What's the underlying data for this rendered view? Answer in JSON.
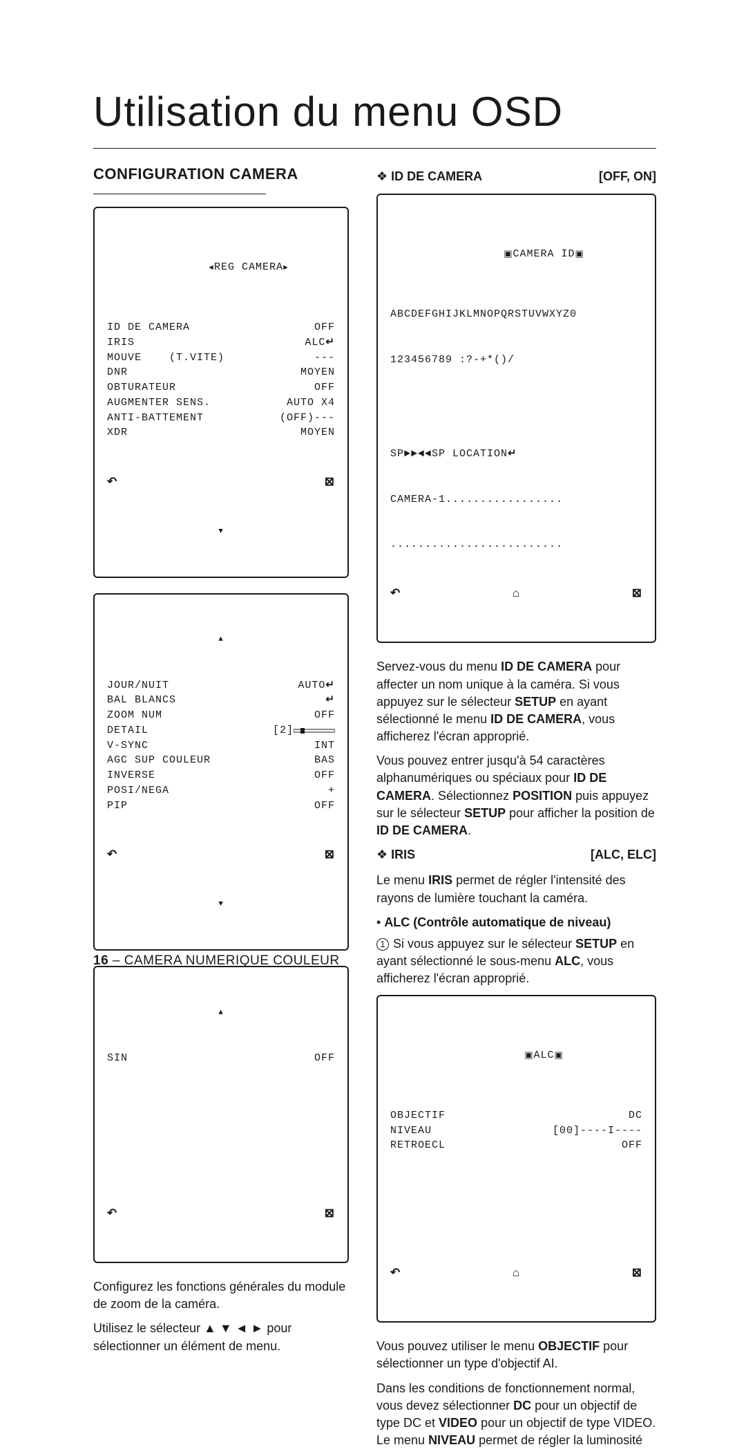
{
  "title": "Utilisation du menu OSD",
  "section_heading": "CONFIGURATION CAMERA",
  "footer": {
    "page": "16",
    "label": "CAMERA NUMERIQUE COULEUR"
  },
  "osd_reg_camera": {
    "title": "REG CAMERA",
    "rows": [
      {
        "label": "ID DE CAMERA",
        "value": "OFF"
      },
      {
        "label": "IRIS",
        "value": "ALC",
        "enter": true
      },
      {
        "label": "MOUVE    (T.VITE)",
        "value": "---"
      },
      {
        "label": "DNR",
        "value": "MOYEN"
      },
      {
        "label": "OBTURATEUR",
        "value": "OFF"
      },
      {
        "label": "AUGMENTER SENS.",
        "value": "AUTO X4"
      },
      {
        "label": "ANTI-BATTEMENT",
        "value": "(OFF)---"
      },
      {
        "label": "XDR",
        "value": "MOYEN"
      }
    ]
  },
  "osd_settings2": {
    "rows": [
      {
        "label": "JOUR/NUIT",
        "value": "AUTO",
        "enter": true
      },
      {
        "label": "BAL BLANCS",
        "value": "",
        "enter": true
      },
      {
        "label": "ZOOM NUM",
        "value": "OFF"
      },
      {
        "label": "DETAIL",
        "value": "[2]",
        "slider": true
      },
      {
        "label": "V-SYNC",
        "value": "INT"
      },
      {
        "label": "AGC SUP COULEUR",
        "value": "BAS"
      },
      {
        "label": "INVERSE",
        "value": "OFF"
      },
      {
        "label": "POSI/NEGA",
        "value": "+"
      },
      {
        "label": "PIP",
        "value": "OFF"
      }
    ]
  },
  "osd_sin": {
    "rows": [
      {
        "label": "SIN",
        "value": "OFF"
      }
    ]
  },
  "left_paras": [
    "Configurez les fonctions générales du module de zoom de la caméra.",
    "Utilisez le sélecteur ▲ ▼ ◄ ► pour sélectionner un élément de menu."
  ],
  "id_camera": {
    "heading": "ID DE CAMERA",
    "options": "[OFF, ON]",
    "osd": {
      "title": "CAMERA ID",
      "alpha": "ABCDEFGHIJKLMNOPQRSTUVWXYZ0",
      "num": "123456789 :?-+*()/",
      "sp_line": "SP►►◄◄SP LOCATION",
      "name_line": "CAMERA-1.................",
      "dots_line": "........................."
    },
    "paras": [
      "Servez-vous du menu **ID DE CAMERA** pour affecter un nom unique à la caméra. Si vous appuyez sur le sélecteur **SETUP** en ayant sélectionné le menu **ID DE CAMERA**, vous afficherez l'écran approprié.",
      "Vous pouvez entrer jusqu'à 54 caractères alphanumériques ou spéciaux pour **ID DE CAMERA**. Sélectionnez **POSITION** puis appuyez sur le sélecteur **SETUP** pour afficher la position de **ID DE CAMERA**."
    ]
  },
  "iris": {
    "heading": "IRIS",
    "options": "[ALC, ELC]",
    "para1": "Le menu **IRIS** permet de régler l'intensité des rayons de lumière touchant la caméra.",
    "sub_heading": "ALC (Contrôle automatique de niveau)",
    "circled1": "Si vous appuyez sur le sélecteur **SETUP** en ayant sélectionné le sous-menu **ALC**, vous afficherez l'écran approprié.",
    "osd": {
      "title": "ALC",
      "rows": [
        {
          "label": "OBJECTIF",
          "value": "DC"
        },
        {
          "label": "NIVEAU",
          "value": "[00]----I----"
        },
        {
          "label": "RETROECL",
          "value": "OFF"
        }
      ]
    },
    "tail_paras": [
      "Vous pouvez utiliser le menu **OBJECTIF** pour sélectionner un type d'objectif AI.",
      "Dans les conditions de fonctionnement normal, vous devez sélectionner **DC** pour un objectif de type DC et **VIDEO** pour un objectif de type VIDEO. Le menu **NIVEAU** permet de régler la luminosité"
    ]
  }
}
